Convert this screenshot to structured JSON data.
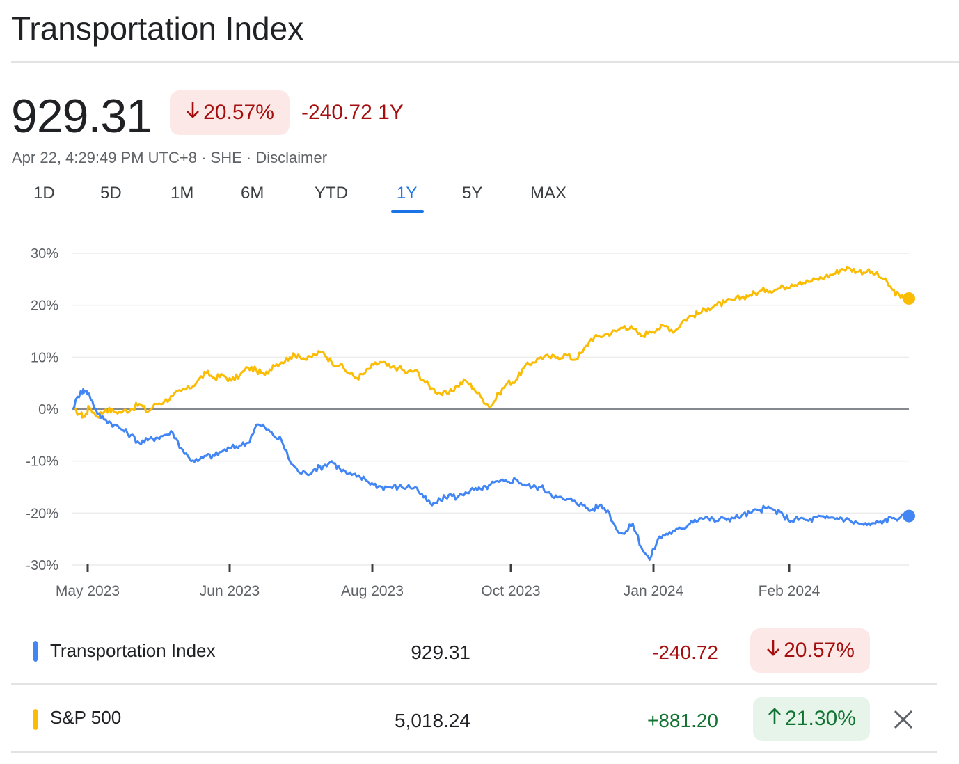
{
  "header": {
    "title": "Transportation Index"
  },
  "quote": {
    "price": "929.31",
    "pct_change": "20.57%",
    "abs_change": "-240.72",
    "period": "1Y",
    "timestamp": "Apr 22, 4:29:49 PM UTC+8",
    "exchange": "SHE",
    "disclaimer": "Disclaimer",
    "separator": "·"
  },
  "tabs": [
    {
      "label": "1D"
    },
    {
      "label": "5D"
    },
    {
      "label": "1M"
    },
    {
      "label": "6M"
    },
    {
      "label": "YTD"
    },
    {
      "label": "1Y",
      "active": true
    },
    {
      "label": "5Y"
    },
    {
      "label": "MAX"
    }
  ],
  "colors": {
    "transportation": "#4285f4",
    "sp500": "#fbbc04",
    "negative": "#a50e0e",
    "positive": "#137333",
    "accent": "#1a73e8"
  },
  "chart_data": {
    "type": "line",
    "ylim": [
      -30,
      30
    ],
    "y_ticks": [
      "30%",
      "20%",
      "10%",
      "0%",
      "-10%",
      "-20%",
      "-30%"
    ],
    "x_ticks": [
      "May 2023",
      "Jun 2023",
      "Aug 2023",
      "Oct 2023",
      "Jan 2024",
      "Feb 2024"
    ],
    "xlim": [
      0,
      100
    ],
    "grid": true,
    "series": [
      {
        "name": "S&P 500",
        "color": "#fbbc04",
        "x": [
          0,
          1,
          1.5,
          2,
          3,
          4,
          5,
          6,
          7,
          8,
          9,
          10,
          11,
          12,
          13,
          14,
          15,
          16,
          17,
          18,
          19,
          20,
          21,
          22,
          23,
          24,
          25,
          26,
          27,
          28,
          29,
          30,
          31,
          32,
          33,
          34,
          35,
          36,
          37,
          38,
          39,
          40,
          41,
          42,
          43,
          44,
          45,
          46,
          47,
          48,
          49,
          50,
          51,
          52,
          53,
          54,
          55,
          56,
          57,
          58,
          59,
          60,
          61,
          62,
          63,
          64,
          65,
          66,
          67,
          68,
          69,
          70,
          71,
          72,
          73,
          74,
          75,
          76,
          77,
          78,
          79,
          80,
          81,
          82,
          83,
          84,
          85,
          86,
          87,
          88,
          89,
          90,
          91,
          92,
          93,
          94,
          95,
          96,
          97,
          98,
          99,
          100
        ],
        "y": [
          0,
          -1,
          -1.5,
          0.5,
          -1.5,
          0,
          -0.5,
          -0.5,
          0,
          1,
          -0.5,
          1,
          1.5,
          2.5,
          3.5,
          4,
          5.5,
          7,
          6,
          6.5,
          5.5,
          6.5,
          8,
          7.5,
          6.5,
          8.5,
          9,
          10,
          10.5,
          9.5,
          10.5,
          11,
          9,
          8.5,
          7,
          6,
          7,
          8.5,
          9,
          8,
          8,
          7,
          7.5,
          5.5,
          4,
          3,
          3,
          4.5,
          5.5,
          4,
          2,
          0.5,
          3,
          5,
          5.5,
          8,
          9,
          10,
          10,
          10,
          10.5,
          9.5,
          11,
          13.5,
          14,
          14.5,
          15,
          16,
          15.5,
          14,
          15,
          15.5,
          16,
          15,
          17,
          18,
          18.5,
          19.5,
          20,
          20.5,
          21,
          21.5,
          22,
          22.5,
          23,
          23,
          23.5,
          24,
          24.5,
          24.5,
          25,
          25.5,
          26,
          27,
          27,
          26.5,
          26.5,
          26,
          25,
          23,
          21.5,
          21.3
        ]
      },
      {
        "name": "Transportation Index",
        "color": "#4285f4",
        "x": [
          0,
          1,
          1.5,
          2,
          3,
          4,
          5,
          6,
          7,
          8,
          9,
          10,
          11,
          12,
          13,
          14,
          15,
          16,
          17,
          18,
          19,
          20,
          21,
          22,
          23,
          24,
          25,
          26,
          27,
          28,
          29,
          30,
          31,
          32,
          33,
          34,
          35,
          36,
          37,
          38,
          39,
          40,
          41,
          42,
          43,
          44,
          45,
          46,
          47,
          48,
          49,
          50,
          51,
          52,
          53,
          54,
          55,
          56,
          57,
          58,
          59,
          60,
          61,
          62,
          63,
          64,
          65,
          66,
          67,
          68,
          69,
          70,
          71,
          72,
          73,
          74,
          75,
          76,
          77,
          78,
          79,
          80,
          81,
          82,
          83,
          84,
          85,
          86,
          87,
          88,
          89,
          90,
          91,
          92,
          93,
          94,
          95,
          96,
          97,
          98,
          99,
          100
        ],
        "y": [
          0,
          3.5,
          3.5,
          3,
          -1,
          -2,
          -3,
          -4,
          -5,
          -6.5,
          -6,
          -5.5,
          -5,
          -4.5,
          -7.5,
          -9.5,
          -10,
          -9,
          -9,
          -8,
          -7.5,
          -7,
          -6.5,
          -3,
          -3.5,
          -5,
          -6,
          -10,
          -12,
          -12.5,
          -11.5,
          -11,
          -10,
          -11.5,
          -12.5,
          -13,
          -13.5,
          -14.5,
          -15,
          -15,
          -15,
          -15,
          -15,
          -17,
          -18.5,
          -17.5,
          -16.5,
          -17,
          -16,
          -15.5,
          -15.5,
          -14.5,
          -14,
          -14,
          -13.5,
          -14.5,
          -15,
          -15,
          -16,
          -17,
          -17.5,
          -17.5,
          -18.5,
          -19.5,
          -18.5,
          -19.5,
          -23,
          -24,
          -22,
          -26.5,
          -29,
          -25,
          -24,
          -23.5,
          -23,
          -21.5,
          -21,
          -21,
          -21.5,
          -21,
          -21,
          -20.5,
          -20,
          -19.5,
          -19,
          -19.5,
          -20.5,
          -21.5,
          -21,
          -21.5,
          -20.8,
          -21,
          -20.9,
          -21,
          -21.5,
          -22,
          -22.3,
          -22,
          -21.5,
          -21,
          -20.8,
          -20.57
        ]
      }
    ]
  },
  "comparison": [
    {
      "name": "Transportation Index",
      "value": "929.31",
      "change": "-240.72",
      "pct": "20.57%",
      "direction": "down",
      "color": "#4285f4"
    },
    {
      "name": "S&P 500",
      "value": "5,018.24",
      "change": "+881.20",
      "pct": "21.30%",
      "direction": "up",
      "color": "#fbbc04"
    }
  ]
}
